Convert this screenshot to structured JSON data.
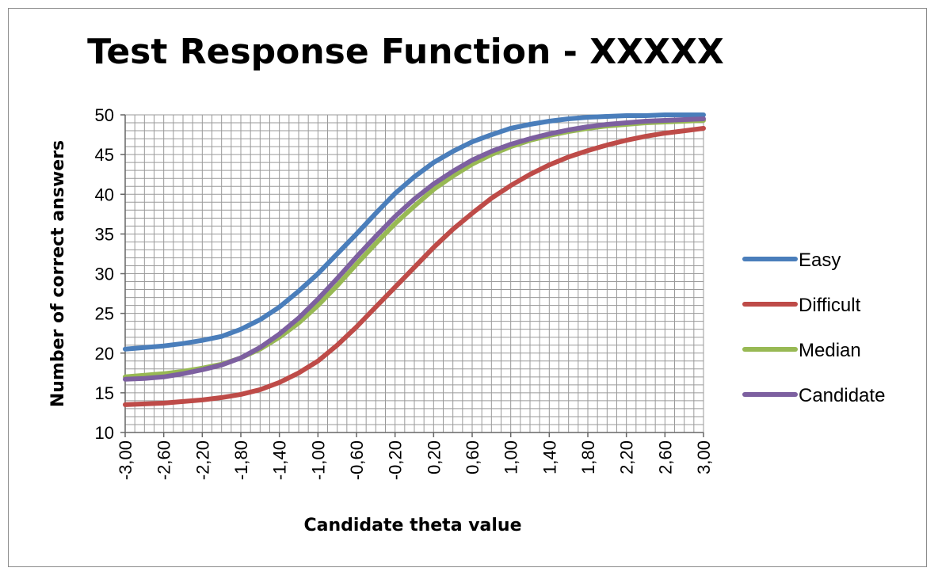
{
  "chart_data": {
    "type": "line",
    "title": "Test Response Function - XXXXX",
    "xlabel": "Candidate theta value",
    "ylabel": "Number of correct answers",
    "xlim": [
      -3.0,
      3.0
    ],
    "ylim": [
      10,
      50
    ],
    "yticks": [
      10,
      15,
      20,
      25,
      30,
      35,
      40,
      45,
      50
    ],
    "xtick_labels": [
      "-3,00",
      "-2,60",
      "-2,20",
      "-1,80",
      "-1,40",
      "-1,00",
      "-0,60",
      "-0,20",
      "0,20",
      "0,60",
      "1,00",
      "1,40",
      "1,80",
      "2,20",
      "2,60",
      "3,00"
    ],
    "xtick_values": [
      -3.0,
      -2.6,
      -2.2,
      -1.8,
      -1.4,
      -1.0,
      -0.6,
      -0.2,
      0.2,
      0.6,
      1.0,
      1.4,
      1.8,
      2.2,
      2.6,
      3.0
    ],
    "grid": true,
    "legend_position": "right",
    "x": [
      -3.0,
      -2.8,
      -2.6,
      -2.4,
      -2.2,
      -2.0,
      -1.8,
      -1.6,
      -1.4,
      -1.2,
      -1.0,
      -0.8,
      -0.6,
      -0.4,
      -0.2,
      0.0,
      0.2,
      0.4,
      0.6,
      0.8,
      1.0,
      1.2,
      1.4,
      1.6,
      1.8,
      2.0,
      2.2,
      2.4,
      2.6,
      2.8,
      3.0
    ],
    "series": [
      {
        "name": "Easy",
        "color": "#4a7ebb",
        "values": [
          20.5,
          20.7,
          20.9,
          21.2,
          21.6,
          22.1,
          23.0,
          24.2,
          25.8,
          27.8,
          30.0,
          32.5,
          35.0,
          37.6,
          40.1,
          42.2,
          44.0,
          45.4,
          46.6,
          47.5,
          48.3,
          48.8,
          49.2,
          49.5,
          49.7,
          49.8,
          49.9,
          49.9,
          50.0,
          50.0,
          50.0
        ]
      },
      {
        "name": "Difficult",
        "color": "#be4b48",
        "values": [
          13.5,
          13.6,
          13.7,
          13.9,
          14.1,
          14.4,
          14.8,
          15.4,
          16.3,
          17.5,
          19.0,
          21.0,
          23.3,
          25.8,
          28.3,
          30.8,
          33.3,
          35.6,
          37.6,
          39.5,
          41.1,
          42.5,
          43.7,
          44.7,
          45.5,
          46.2,
          46.8,
          47.3,
          47.7,
          48.0,
          48.3
        ]
      },
      {
        "name": "Median",
        "color": "#98b954",
        "values": [
          17.0,
          17.2,
          17.4,
          17.7,
          18.1,
          18.6,
          19.4,
          20.5,
          22.0,
          23.8,
          26.0,
          28.5,
          31.2,
          33.8,
          36.3,
          38.5,
          40.6,
          42.3,
          43.8,
          45.0,
          46.0,
          46.8,
          47.4,
          47.9,
          48.3,
          48.6,
          48.8,
          49.0,
          49.1,
          49.2,
          49.3
        ]
      },
      {
        "name": "Candidate",
        "color": "#7d60a0",
        "values": [
          16.7,
          16.8,
          17.0,
          17.4,
          17.9,
          18.5,
          19.4,
          20.7,
          22.4,
          24.4,
          26.8,
          29.4,
          32.1,
          34.7,
          37.2,
          39.4,
          41.3,
          42.9,
          44.3,
          45.4,
          46.3,
          47.0,
          47.6,
          48.1,
          48.5,
          48.8,
          49.0,
          49.2,
          49.3,
          49.4,
          49.5
        ]
      }
    ]
  }
}
